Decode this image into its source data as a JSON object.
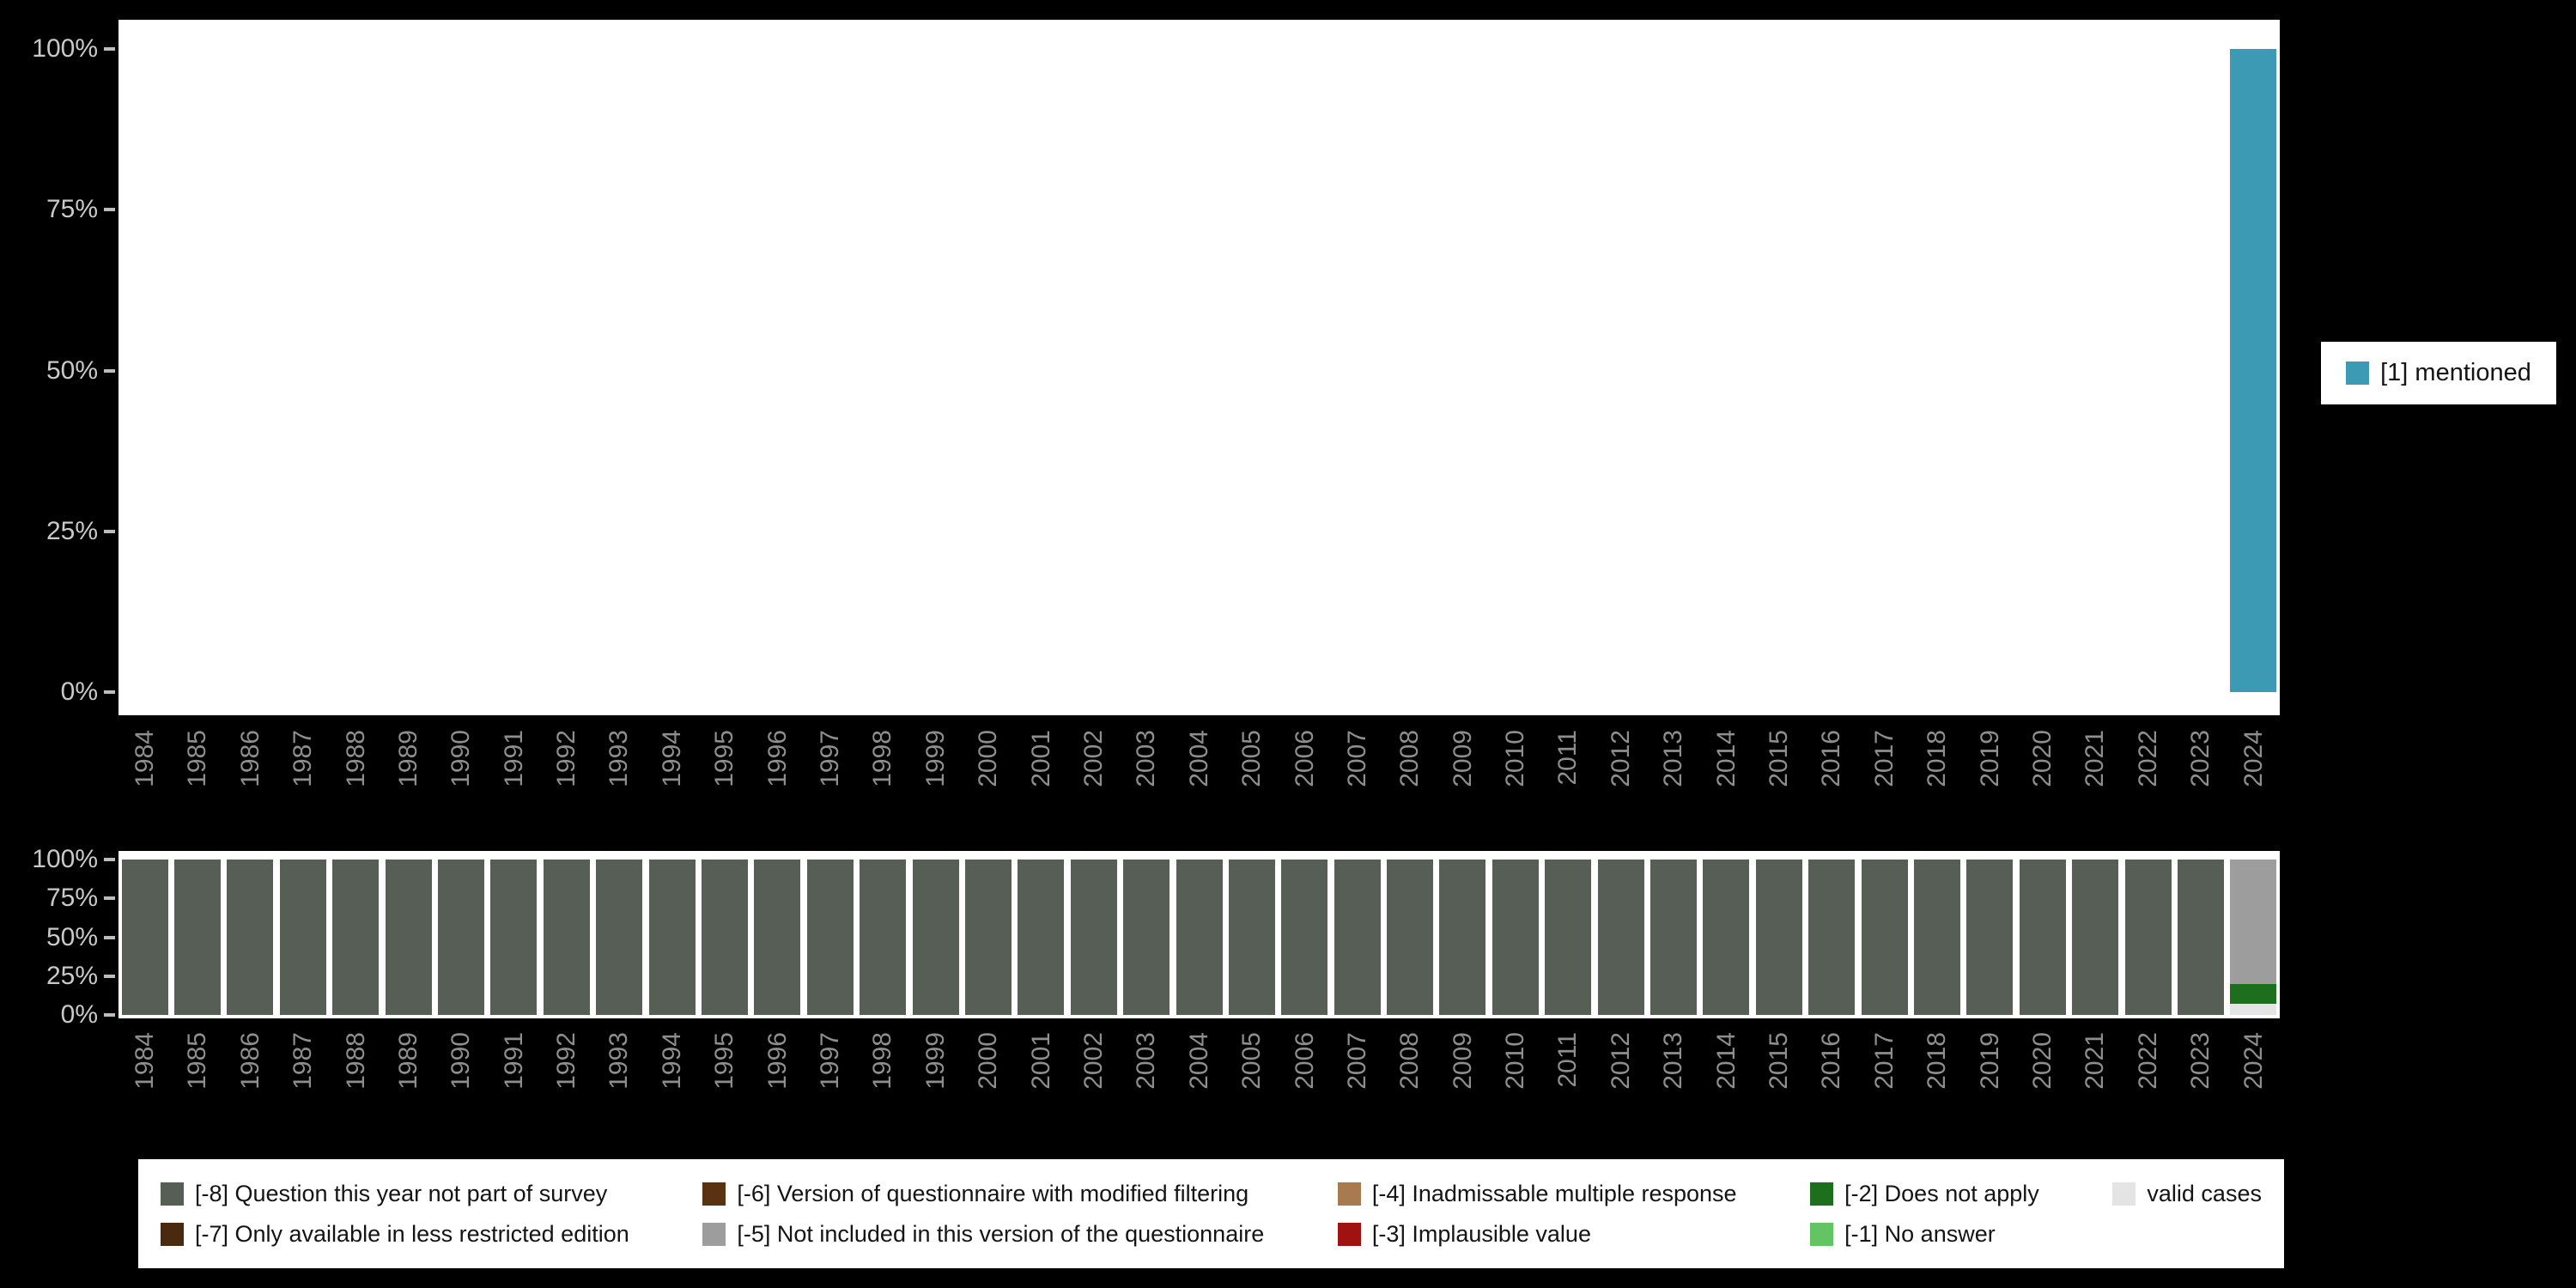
{
  "legends": {
    "right": {
      "items": [
        {
          "label": "[1] mentioned",
          "color": "#3d9ab5"
        }
      ]
    },
    "bottom": {
      "items": [
        {
          "label": "[-8] Question this year not part of survey",
          "color": "#565e56"
        },
        {
          "label": "[-6] Version of questionnaire with modified filtering",
          "color": "#59330f"
        },
        {
          "label": "[-4] Inadmissable multiple response",
          "color": "#a87a4f"
        },
        {
          "label": "[-2] Does not apply",
          "color": "#1d6f1d"
        },
        {
          "label": "valid cases",
          "color": "#e4e4e4"
        },
        {
          "label": "[-7] Only available in less restricted edition",
          "color": "#4a2a0e"
        },
        {
          "label": "[-5] Not included in this version of the questionnaire",
          "color": "#9d9d9d"
        },
        {
          "label": "[-3] Implausible value",
          "color": "#a01212"
        },
        {
          "label": "[-1] No answer",
          "color": "#62c462"
        }
      ]
    }
  },
  "chart_data": [
    {
      "type": "bar",
      "title": "",
      "xlabel": "",
      "ylabel": "",
      "grid": false,
      "legend_position": "right",
      "ylim": [
        0,
        100
      ],
      "ytick_values": [
        100,
        75,
        50,
        25,
        0
      ],
      "ytick_labels": [
        "100%",
        "75%",
        "50%",
        "25%",
        "0%"
      ],
      "categories": [
        "1984",
        "1985",
        "1986",
        "1987",
        "1988",
        "1989",
        "1990",
        "1991",
        "1992",
        "1993",
        "1994",
        "1995",
        "1996",
        "1997",
        "1998",
        "1999",
        "2000",
        "2001",
        "2002",
        "2003",
        "2004",
        "2005",
        "2006",
        "2007",
        "2008",
        "2009",
        "2010",
        "2011",
        "2012",
        "2013",
        "2014",
        "2015",
        "2016",
        "2017",
        "2018",
        "2019",
        "2020",
        "2021",
        "2022",
        "2023",
        "2024"
      ],
      "series": [
        {
          "name": "[1] mentioned",
          "color": "#3d9ab5",
          "values": [
            0,
            0,
            0,
            0,
            0,
            0,
            0,
            0,
            0,
            0,
            0,
            0,
            0,
            0,
            0,
            0,
            0,
            0,
            0,
            0,
            0,
            0,
            0,
            0,
            0,
            0,
            0,
            0,
            0,
            0,
            0,
            0,
            0,
            0,
            0,
            0,
            0,
            0,
            0,
            0,
            100
          ]
        }
      ]
    },
    {
      "type": "bar",
      "stacked": true,
      "title": "",
      "xlabel": "",
      "ylabel": "",
      "grid": false,
      "legend_position": "bottom",
      "ylim": [
        0,
        100
      ],
      "ytick_values": [
        100,
        75,
        50,
        25,
        0
      ],
      "ytick_labels": [
        "100%",
        "75%",
        "50%",
        "25%",
        "0%"
      ],
      "categories": [
        "1984",
        "1985",
        "1986",
        "1987",
        "1988",
        "1989",
        "1990",
        "1991",
        "1992",
        "1993",
        "1994",
        "1995",
        "1996",
        "1997",
        "1998",
        "1999",
        "2000",
        "2001",
        "2002",
        "2003",
        "2004",
        "2005",
        "2006",
        "2007",
        "2008",
        "2009",
        "2010",
        "2011",
        "2012",
        "2013",
        "2014",
        "2015",
        "2016",
        "2017",
        "2018",
        "2019",
        "2020",
        "2021",
        "2022",
        "2023",
        "2024"
      ],
      "series": [
        {
          "name": "[-8] Question this year not part of survey",
          "color": "#565e56",
          "values": [
            100,
            100,
            100,
            100,
            100,
            100,
            100,
            100,
            100,
            100,
            100,
            100,
            100,
            100,
            100,
            100,
            100,
            100,
            100,
            100,
            100,
            100,
            100,
            100,
            100,
            100,
            100,
            100,
            100,
            100,
            100,
            100,
            100,
            100,
            100,
            100,
            100,
            100,
            100,
            100,
            0
          ]
        },
        {
          "name": "[-5] Not included in this version of the questionnaire",
          "color": "#9d9d9d",
          "values": [
            0,
            0,
            0,
            0,
            0,
            0,
            0,
            0,
            0,
            0,
            0,
            0,
            0,
            0,
            0,
            0,
            0,
            0,
            0,
            0,
            0,
            0,
            0,
            0,
            0,
            0,
            0,
            0,
            0,
            0,
            0,
            0,
            0,
            0,
            0,
            0,
            0,
            0,
            0,
            0,
            80
          ]
        },
        {
          "name": "[-2] Does not apply",
          "color": "#1d6f1d",
          "values": [
            0,
            0,
            0,
            0,
            0,
            0,
            0,
            0,
            0,
            0,
            0,
            0,
            0,
            0,
            0,
            0,
            0,
            0,
            0,
            0,
            0,
            0,
            0,
            0,
            0,
            0,
            0,
            0,
            0,
            0,
            0,
            0,
            0,
            0,
            0,
            0,
            0,
            0,
            0,
            0,
            13
          ]
        },
        {
          "name": "valid cases",
          "color": "#e4e4e4",
          "values": [
            0,
            0,
            0,
            0,
            0,
            0,
            0,
            0,
            0,
            0,
            0,
            0,
            0,
            0,
            0,
            0,
            0,
            0,
            0,
            0,
            0,
            0,
            0,
            0,
            0,
            0,
            0,
            0,
            0,
            0,
            0,
            0,
            0,
            0,
            0,
            0,
            0,
            0,
            0,
            0,
            7
          ]
        }
      ]
    }
  ]
}
